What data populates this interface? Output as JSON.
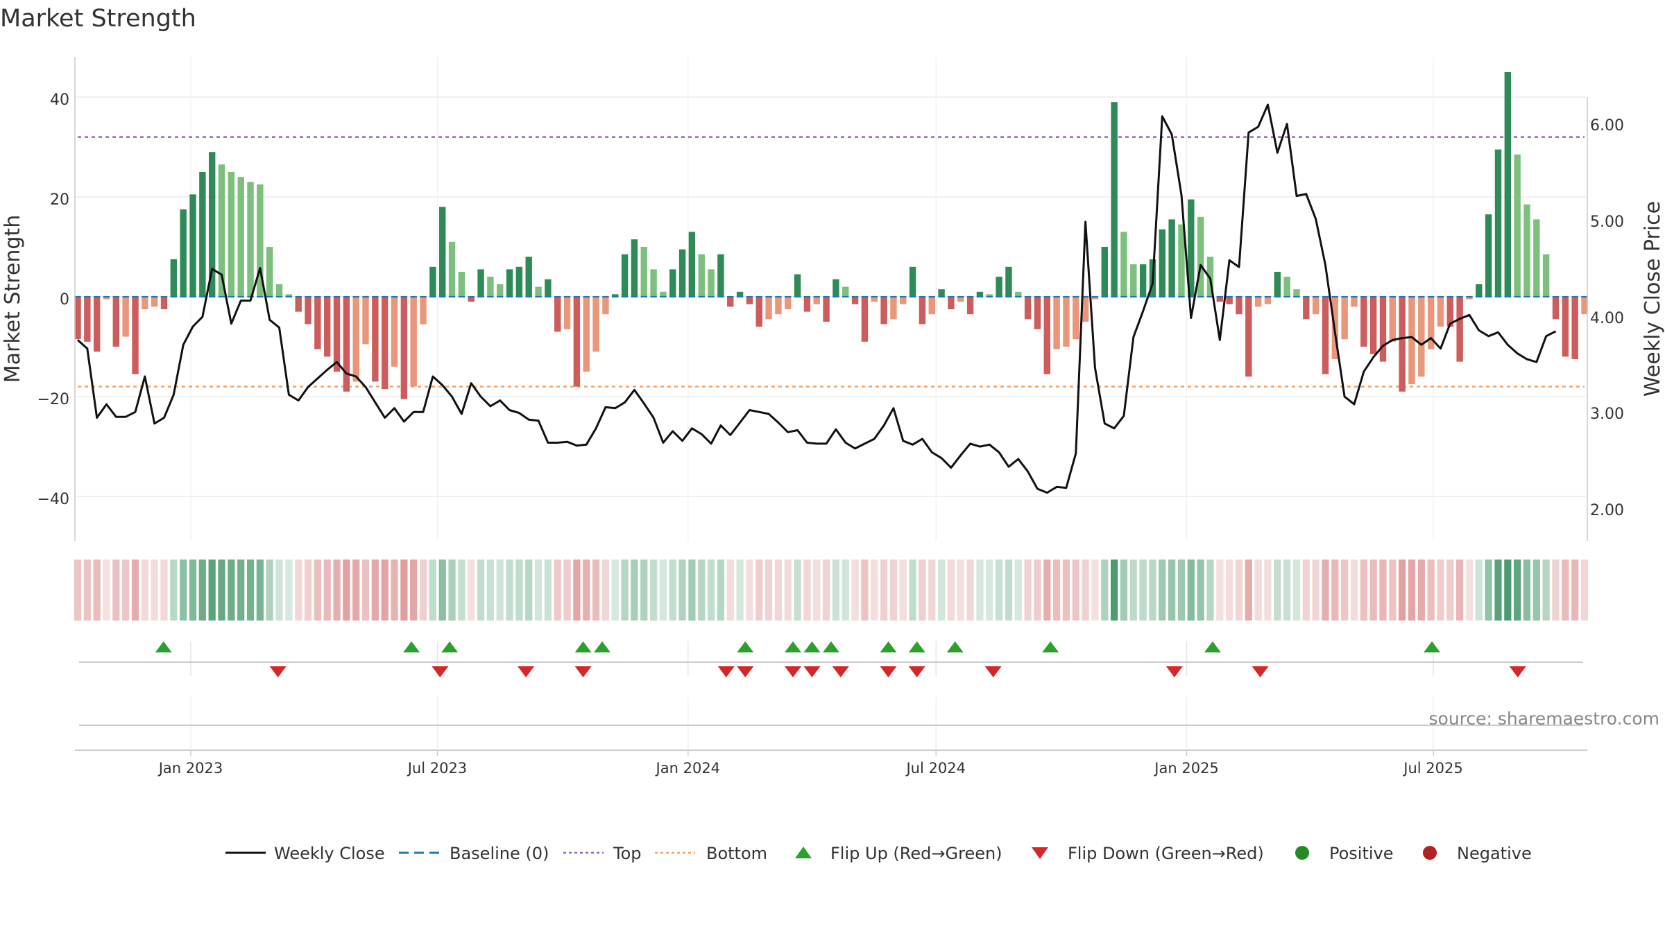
{
  "chart_data": {
    "type": "bar",
    "title": "Market Strength",
    "ylabel": "Market Strength",
    "y2label": "Weekly Close Price",
    "ylim": [
      -48,
      48
    ],
    "y2lim": [
      1.79,
      6.62
    ],
    "yticks": [
      40,
      20,
      0,
      -20,
      -40
    ],
    "yticklabels": [
      "40",
      "20",
      "0",
      "−20",
      "−40"
    ],
    "y2ticks": [
      6.0,
      5.0,
      4.0,
      3.0,
      2.0
    ],
    "y2ticklabels": [
      "6.00",
      "5.00",
      "4.00",
      "3.00",
      "2.00"
    ],
    "x_start": "2022-10-10",
    "x_end": "2025-10-20",
    "xticks": [
      "2023-01-01",
      "2023-07-01",
      "2024-01-01",
      "2024-07-01",
      "2025-01-01",
      "2025-07-01"
    ],
    "xticklabels": [
      "Jan 2023",
      "Jul 2023",
      "Jan 2024",
      "Jul 2024",
      "Jan 2025",
      "Jul 2025"
    ],
    "top_threshold": 32,
    "bottom_threshold": -18,
    "series": [
      {
        "name": "Market Strength",
        "values": [
          -8.5,
          -9,
          -11,
          -0.5,
          -10,
          -8,
          -15.5,
          -2.5,
          -2,
          -2.5,
          7.5,
          17.5,
          20.5,
          25,
          29,
          26.5,
          25,
          24,
          23,
          22.5,
          10,
          2.5,
          0.5,
          -3,
          -5.5,
          -10.5,
          -12,
          -15,
          -19,
          -17,
          -9.5,
          -17,
          -18.5,
          -14,
          -20.5,
          -18,
          -5.5,
          6,
          18,
          11,
          5,
          -1,
          5.5,
          4,
          2.5,
          5.5,
          6,
          8,
          2,
          3.5,
          -7,
          -6.5,
          -18,
          -15,
          -11,
          -3.5,
          0.5,
          8.5,
          11.5,
          10,
          5.5,
          1,
          5.5,
          9.5,
          13,
          8.5,
          5.5,
          8.5,
          -2,
          1,
          -1.5,
          -6,
          -4.5,
          -3.5,
          -2.5,
          4.5,
          -3,
          -1.5,
          -5,
          3.5,
          2,
          -1.5,
          -9,
          -1,
          -5.5,
          -4.5,
          -1.5,
          6,
          -5.5,
          -3.5,
          1.5,
          -2.5,
          -1,
          -3.5,
          1,
          0.5,
          4,
          6,
          1,
          -4.5,
          -6.5,
          -15.5,
          -10.5,
          -10,
          -8.5,
          -5,
          -0.5,
          10,
          39,
          13,
          6.5,
          6.5,
          7.5,
          13.5,
          15.5,
          14.5,
          19.5,
          16,
          8,
          -1,
          -1.5,
          -3.5,
          -16,
          -2,
          -1.5,
          5,
          4,
          1.5,
          -4.5,
          -3.5,
          -15.5,
          -12.5,
          -8.5,
          -2,
          -10,
          -11.5,
          -13,
          -9,
          -19,
          -17.5,
          -16,
          -10.5,
          -6,
          -6,
          -13,
          -0.5,
          2.5,
          16.5,
          29.5,
          45,
          28.5,
          18.5,
          15.5,
          8.5,
          -4.5,
          -12,
          -12.5,
          -3.5
        ]
      },
      {
        "name": "Weekly Close",
        "values": [
          3.77,
          3.68,
          2.96,
          3.1,
          2.97,
          2.97,
          3.02,
          3.39,
          2.9,
          2.96,
          3.2,
          3.72,
          3.91,
          4.01,
          4.51,
          4.45,
          3.94,
          4.18,
          4.18,
          4.52,
          3.98,
          3.9,
          3.2,
          3.14,
          3.28,
          3.37,
          3.46,
          3.54,
          3.42,
          3.39,
          3.28,
          3.12,
          2.96,
          3.06,
          2.92,
          3.02,
          3.02,
          3.39,
          3.3,
          3.18,
          3.0,
          3.32,
          3.18,
          3.08,
          3.14,
          3.04,
          3.01,
          2.94,
          2.93,
          2.7,
          2.7,
          2.71,
          2.67,
          2.68,
          2.85,
          3.07,
          3.06,
          3.12,
          3.25,
          3.11,
          2.96,
          2.7,
          2.82,
          2.72,
          2.85,
          2.79,
          2.69,
          2.88,
          2.78,
          2.91,
          3.04,
          3.02,
          3.0,
          2.91,
          2.81,
          2.83,
          2.7,
          2.69,
          2.69,
          2.84,
          2.7,
          2.64,
          2.69,
          2.74,
          2.88,
          3.06,
          2.72,
          2.68,
          2.74,
          2.6,
          2.54,
          2.44,
          2.57,
          2.69,
          2.66,
          2.68,
          2.6,
          2.45,
          2.53,
          2.4,
          2.22,
          2.18,
          2.24,
          2.23,
          2.59,
          5.0,
          3.48,
          2.9,
          2.85,
          2.98,
          3.8,
          4.07,
          4.36,
          6.1,
          5.91,
          5.28,
          4.0,
          4.55,
          4.41,
          3.77,
          4.6,
          4.53,
          5.93,
          5.99,
          6.22,
          5.72,
          6.02,
          5.27,
          5.29,
          5.03,
          4.55,
          3.85,
          3.18,
          3.1,
          3.44,
          3.59,
          3.71,
          3.77,
          3.79,
          3.8,
          3.72,
          3.79,
          3.68,
          3.94,
          3.99,
          4.03,
          3.87,
          3.81,
          3.85,
          3.72,
          3.63,
          3.57,
          3.54,
          3.81,
          3.86
        ]
      }
    ],
    "flip_up_dates": [
      "2022-12-12",
      "2023-06-12",
      "2023-07-10",
      "2023-10-16",
      "2023-10-30",
      "2024-02-12",
      "2024-03-18",
      "2024-04-01",
      "2024-04-15",
      "2024-05-27",
      "2024-06-17",
      "2024-07-15",
      "2024-09-23",
      "2025-01-20",
      "2025-06-30"
    ],
    "flip_down_dates": [
      "2023-03-06",
      "2023-07-03",
      "2023-09-04",
      "2023-10-16",
      "2024-01-29",
      "2024-02-12",
      "2024-03-18",
      "2024-04-01",
      "2024-04-22",
      "2024-05-27",
      "2024-06-17",
      "2024-08-12",
      "2024-12-23",
      "2025-02-24",
      "2025-09-01"
    ],
    "legend": [
      "Weekly Close",
      "Baseline (0)",
      "Top",
      "Bottom",
      "Flip Up (Red→Green)",
      "Flip Down (Green→Red)",
      "Positive",
      "Negative"
    ],
    "legend_placement": "bottom",
    "grid": true,
    "source": "source: sharemaestro.com"
  },
  "colors": {
    "positive_dark": "#2e8b57",
    "positive_light": "#7dbf7d",
    "negative_dark": "#cd5c5c",
    "negative_light": "#e9967a",
    "price_line": "#111111",
    "baseline": "#1f77b4",
    "top": "#9467bd",
    "bottom": "#f4a261",
    "flip_up": "#2ca02c",
    "flip_down": "#d62728",
    "positive_dot": "#228b22",
    "negative_dot": "#b22222"
  }
}
